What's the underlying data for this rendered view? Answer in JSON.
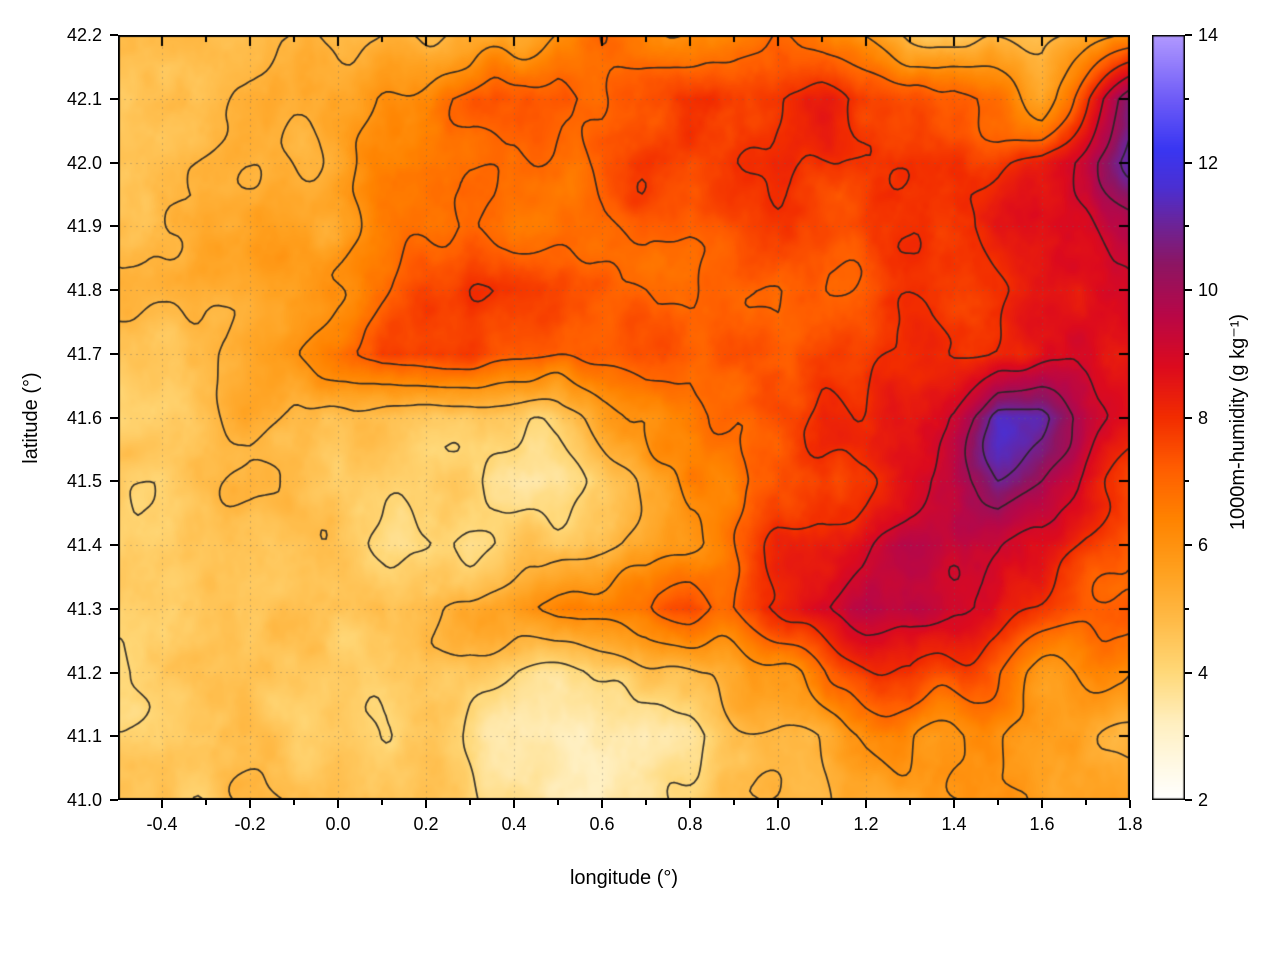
{
  "chart_data": {
    "type": "heatmap",
    "title": "",
    "xlabel": "longitude (°)",
    "ylabel": "latitude (°)",
    "colorbar_label": "1000m-humidity (g kg⁻¹)",
    "xlim": [
      -0.5,
      1.8
    ],
    "ylim": [
      41.0,
      42.2
    ],
    "clim": [
      2,
      14
    ],
    "grid_on": true,
    "x_ticks": {
      "values": [
        -0.4,
        -0.2,
        0.0,
        0.2,
        0.4,
        0.6,
        0.8,
        1.0,
        1.2,
        1.4,
        1.6,
        1.8
      ],
      "labels": [
        "-0.4",
        "-0.2",
        "0.0",
        "0.2",
        "0.4",
        "0.6",
        "0.8",
        "1.0",
        "1.2",
        "1.4",
        "1.6",
        "1.8"
      ],
      "minor": [
        -0.3,
        -0.1,
        0.1,
        0.3,
        0.5,
        0.7,
        0.9,
        1.1,
        1.3,
        1.5,
        1.7
      ]
    },
    "y_ticks": {
      "values": [
        41.0,
        41.1,
        41.2,
        41.3,
        41.4,
        41.5,
        41.6,
        41.7,
        41.8,
        41.9,
        42.0,
        42.1,
        42.2
      ],
      "labels": [
        "41.0",
        "41.1",
        "41.2",
        "41.3",
        "41.4",
        "41.5",
        "41.6",
        "41.7",
        "41.8",
        "41.9",
        "42.0",
        "42.1",
        "42.2"
      ]
    },
    "colorbar_ticks": {
      "values": [
        2,
        4,
        6,
        8,
        10,
        12,
        14
      ],
      "labels": [
        "2",
        "4",
        "6",
        "8",
        "10",
        "12",
        "14"
      ],
      "minor": [
        3,
        5,
        7,
        9,
        11,
        13
      ]
    },
    "palette": [
      [
        2.0,
        "#ffffff"
      ],
      [
        2.6,
        "#fff8e1"
      ],
      [
        3.2,
        "#ffefc0"
      ],
      [
        4.0,
        "#ffd878"
      ],
      [
        4.8,
        "#ffbb48"
      ],
      [
        5.6,
        "#ffa01e"
      ],
      [
        6.4,
        "#ff8300"
      ],
      [
        7.2,
        "#ff5d00"
      ],
      [
        8.0,
        "#f22c00"
      ],
      [
        8.8,
        "#dc0a1e"
      ],
      [
        9.6,
        "#b80747"
      ],
      [
        10.4,
        "#8d1563"
      ],
      [
        11.0,
        "#6d2396"
      ],
      [
        11.6,
        "#4b2fd2"
      ],
      [
        12.2,
        "#3936f2"
      ],
      [
        13.0,
        "#6f5cf7"
      ],
      [
        14.0,
        "#b29aff"
      ]
    ],
    "contour_levels": [
      4,
      5,
      6,
      7,
      8,
      9,
      10,
      11
    ],
    "contour_color": "#252525",
    "grid_values": {
      "units": "g kg⁻¹",
      "lon_start": -0.5,
      "lon_step": 0.1,
      "lat_start": 42.2,
      "lat_step": -0.1,
      "values": [
        [
          5.0,
          5.0,
          5.2,
          5.0,
          4.9,
          5.0,
          5.1,
          4.9,
          4.7,
          5.2,
          6.2,
          7.0,
          6.6,
          6.0,
          6.4,
          6.8,
          6.2,
          5.4,
          4.8,
          4.6,
          4.5,
          4.7,
          5.2,
          5.8
        ],
        [
          5.0,
          5.0,
          5.1,
          5.2,
          5.1,
          5.4,
          5.8,
          6.4,
          7.0,
          7.2,
          7.5,
          7.0,
          7.5,
          8.0,
          7.6,
          7.8,
          8.0,
          7.6,
          7.2,
          7.4,
          6.8,
          5.8,
          8.0,
          10.5
        ],
        [
          5.0,
          5.0,
          5.2,
          5.4,
          5.4,
          5.5,
          5.8,
          6.2,
          6.6,
          6.8,
          7.0,
          7.2,
          7.6,
          7.4,
          7.8,
          8.0,
          8.0,
          7.8,
          8.0,
          8.2,
          8.0,
          8.4,
          9.5,
          11.0
        ],
        [
          4.9,
          5.0,
          5.2,
          5.4,
          5.6,
          5.8,
          6.2,
          6.6,
          6.8,
          6.6,
          6.8,
          7.0,
          7.2,
          7.0,
          7.3,
          7.6,
          7.8,
          8.0,
          8.0,
          8.2,
          8.4,
          8.6,
          9.2,
          10.0
        ],
        [
          4.8,
          5.0,
          5.0,
          5.4,
          5.8,
          6.4,
          7.0,
          7.6,
          7.8,
          7.4,
          7.2,
          7.0,
          7.2,
          7.0,
          6.8,
          7.0,
          7.4,
          7.6,
          7.8,
          8.0,
          8.2,
          8.4,
          8.8,
          9.4
        ],
        [
          4.8,
          4.8,
          5.0,
          5.2,
          6.0,
          7.0,
          8.0,
          8.2,
          7.8,
          7.2,
          7.0,
          7.0,
          7.2,
          7.0,
          7.0,
          7.2,
          7.5,
          7.8,
          8.0,
          8.0,
          8.2,
          8.6,
          9.0,
          8.6
        ],
        [
          4.6,
          4.6,
          4.8,
          5.0,
          5.0,
          5.0,
          4.8,
          4.6,
          4.4,
          4.4,
          4.6,
          5.5,
          6.0,
          6.2,
          6.8,
          7.2,
          7.8,
          8.0,
          8.5,
          9.5,
          11.5,
          11.0,
          9.5,
          8.5
        ],
        [
          4.5,
          4.5,
          4.6,
          4.8,
          4.8,
          4.6,
          4.4,
          4.2,
          4.0,
          3.8,
          4.0,
          4.5,
          5.5,
          6.5,
          6.5,
          7.0,
          7.5,
          8.0,
          9.0,
          10.0,
          11.0,
          10.0,
          8.5,
          8.0
        ],
        [
          4.5,
          4.5,
          4.5,
          4.6,
          4.5,
          4.3,
          4.2,
          4.0,
          4.0,
          4.2,
          4.3,
          4.8,
          5.5,
          6.2,
          7.0,
          8.0,
          8.5,
          9.0,
          9.5,
          9.5,
          9.5,
          9.0,
          8.0,
          7.5
        ],
        [
          4.5,
          4.5,
          4.5,
          4.6,
          4.6,
          4.8,
          5.0,
          5.0,
          5.2,
          5.8,
          6.5,
          6.8,
          6.5,
          7.5,
          7.5,
          8.5,
          9.0,
          9.5,
          9.5,
          9.0,
          8.5,
          8.0,
          7.5,
          7.0
        ],
        [
          4.3,
          4.4,
          4.5,
          4.5,
          4.6,
          4.8,
          4.6,
          4.4,
          4.2,
          4.2,
          4.0,
          4.0,
          4.2,
          4.5,
          5.2,
          6.0,
          6.8,
          7.5,
          8.0,
          7.5,
          6.8,
          6.2,
          6.0,
          5.8
        ],
        [
          4.3,
          4.3,
          4.4,
          4.5,
          4.5,
          4.5,
          4.4,
          4.2,
          4.0,
          3.8,
          3.4,
          3.2,
          3.2,
          3.6,
          4.2,
          5.0,
          5.5,
          6.0,
          6.2,
          6.0,
          5.8,
          5.6,
          5.5,
          5.4
        ],
        [
          4.5,
          4.5,
          4.5,
          4.6,
          4.5,
          4.5,
          4.4,
          4.3,
          4.2,
          4.0,
          3.6,
          3.2,
          3.4,
          3.8,
          4.4,
          4.8,
          5.2,
          5.4,
          5.5,
          5.6,
          5.6,
          5.5,
          5.3,
          5.2
        ]
      ]
    }
  }
}
